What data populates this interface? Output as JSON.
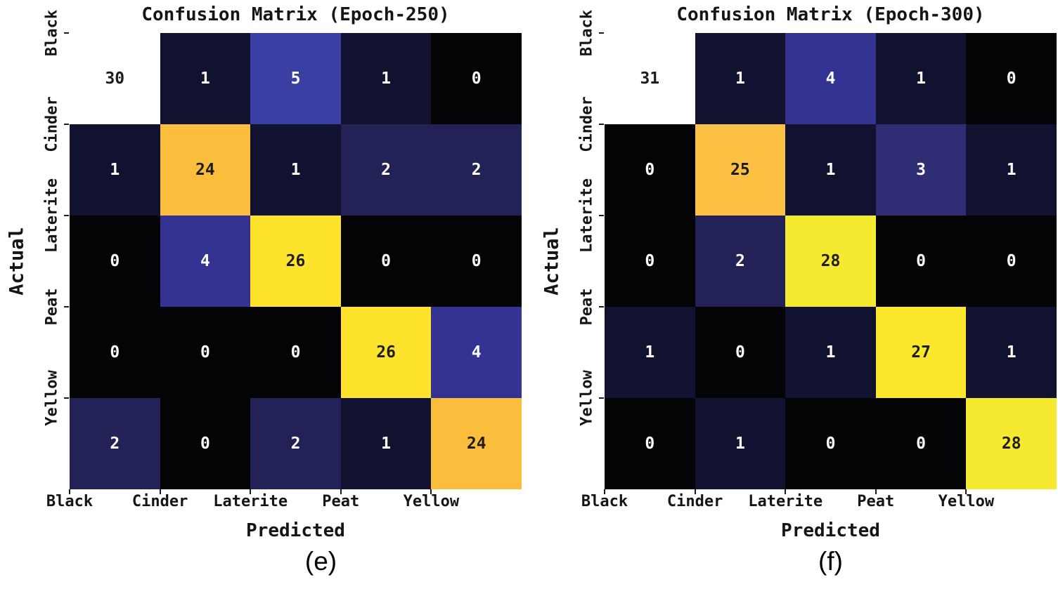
{
  "chart_data": [
    {
      "type": "heatmap",
      "title": "Confusion Matrix (Epoch-250)",
      "xlabel": "Predicted",
      "ylabel": "Actual",
      "caption": "(e)",
      "categories": [
        "Black",
        "Cinder",
        "Laterite",
        "Peat",
        "Yellow"
      ],
      "row_order_note": "rows = Actual class top-to-bottom, columns = Predicted class left-to-right",
      "matrix": [
        [
          30,
          1,
          5,
          1,
          0
        ],
        [
          1,
          24,
          1,
          2,
          2
        ],
        [
          0,
          4,
          26,
          0,
          0
        ],
        [
          0,
          0,
          0,
          26,
          4
        ],
        [
          2,
          0,
          2,
          1,
          24
        ]
      ]
    },
    {
      "type": "heatmap",
      "title": "Confusion Matrix (Epoch-300)",
      "xlabel": "Predicted",
      "ylabel": "Actual",
      "caption": "(f)",
      "categories": [
        "Black",
        "Cinder",
        "Laterite",
        "Peat",
        "Yellow"
      ],
      "row_order_note": "rows = Actual class top-to-bottom, columns = Predicted class left-to-right",
      "matrix": [
        [
          31,
          1,
          4,
          1,
          0
        ],
        [
          0,
          25,
          1,
          3,
          1
        ],
        [
          0,
          2,
          28,
          0,
          0
        ],
        [
          1,
          0,
          1,
          27,
          1
        ],
        [
          0,
          1,
          0,
          0,
          28
        ]
      ]
    }
  ],
  "style": {
    "background": "#ffffff",
    "tick_color": "#1a1a1a",
    "label_color": "#151515",
    "cell_text_light": "#ffffff",
    "cell_text_dark": "#1d1d1d",
    "colormap_note": "dark navy-blue through royal blue to orange/yellow/white",
    "value_colors": {
      "0": "#040407",
      "1": "#111130",
      "2": "#232257",
      "3": "#2f2d74",
      "4": "#343393",
      "5": "#3a3fa3",
      "24": "#fbbd3c",
      "25": "#fcc042",
      "26": "#fde32b",
      "27": "#fbe72c",
      "28": "#f6ea31",
      "30": "#ffffff",
      "31": "#ffffff"
    }
  }
}
